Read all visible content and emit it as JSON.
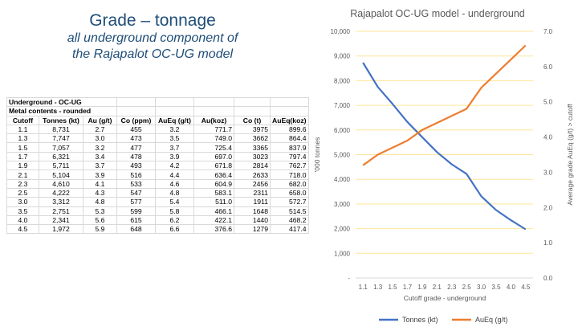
{
  "slide": {
    "title": "Grade – tonnage",
    "subtitle_line1": "all underground component of",
    "subtitle_line2": "the Rajapalot OC-UG model"
  },
  "table": {
    "caption1": "Underground - OC-UG",
    "caption2": "Metal contents - rounded",
    "headers": [
      "Cutoff",
      "Tonnes (kt)",
      "Au (g/t)",
      "Co (ppm)",
      "AuEq (g/t)",
      "Au(koz)",
      "Co (t)",
      "AuEq(koz)"
    ],
    "rows": [
      [
        "1.1",
        "8,731",
        "2.7",
        "455",
        "3.2",
        "771.7",
        "3975",
        "899.6"
      ],
      [
        "1.3",
        "7,747",
        "3.0",
        "473",
        "3.5",
        "749.0",
        "3662",
        "864.4"
      ],
      [
        "1.5",
        "7,057",
        "3.2",
        "477",
        "3.7",
        "725.4",
        "3365",
        "837.9"
      ],
      [
        "1.7",
        "6,321",
        "3.4",
        "478",
        "3.9",
        "697.0",
        "3023",
        "797.4"
      ],
      [
        "1.9",
        "5,711",
        "3.7",
        "493",
        "4.2",
        "671.8",
        "2814",
        "762.7"
      ],
      [
        "2.1",
        "5,104",
        "3.9",
        "516",
        "4.4",
        "636.4",
        "2633",
        "718.0"
      ],
      [
        "2.3",
        "4,610",
        "4.1",
        "533",
        "4.6",
        "604.9",
        "2456",
        "682.0"
      ],
      [
        "2.5",
        "4,222",
        "4.3",
        "547",
        "4.8",
        "583.1",
        "2311",
        "658.0"
      ],
      [
        "3.0",
        "3,312",
        "4.8",
        "577",
        "5.4",
        "511.0",
        "1911",
        "572.7"
      ],
      [
        "3.5",
        "2,751",
        "5.3",
        "599",
        "5.8",
        "466.1",
        "1648",
        "514.5"
      ],
      [
        "4.0",
        "2,341",
        "5.6",
        "615",
        "6.2",
        "422.1",
        "1440",
        "468.2"
      ],
      [
        "4.5",
        "1,972",
        "5.9",
        "648",
        "6.6",
        "376.6",
        "1279",
        "417.4"
      ]
    ]
  },
  "chart_data": {
    "type": "line",
    "title": "Rajapalot OC-UG model - underground",
    "xlabel": "Cutoff grade - underground",
    "ylabel_left": "'000 tonnes",
    "ylabel_right": "Average grade AuEq (g/t) > cutoff",
    "categories": [
      "1.1",
      "1.3",
      "1.5",
      "1.7",
      "1.9",
      "2.1",
      "2.3",
      "2.5",
      "3.0",
      "3.5",
      "4.0",
      "4.5"
    ],
    "y_left_ticks": [
      "-",
      "1,000",
      "2,000",
      "3,000",
      "4,000",
      "5,000",
      "6,000",
      "7,000",
      "8,000",
      "9,000",
      "10,000"
    ],
    "y_right_ticks": [
      "0.0",
      "1.0",
      "2.0",
      "3.0",
      "4.0",
      "5.0",
      "6.0",
      "7.0"
    ],
    "ylim_left": [
      0,
      10000
    ],
    "ylim_right": [
      0,
      7
    ],
    "series": [
      {
        "name": "Tonnes (kt)",
        "axis": "left",
        "color": "#4472c4",
        "values": [
          8731,
          7747,
          7057,
          6321,
          5711,
          5104,
          4610,
          4222,
          3312,
          2751,
          2341,
          1972
        ]
      },
      {
        "name": "AuEq (g/t)",
        "axis": "right",
        "color": "#ed7d31",
        "values": [
          3.2,
          3.5,
          3.7,
          3.9,
          4.2,
          4.4,
          4.6,
          4.8,
          5.4,
          5.8,
          6.2,
          6.6
        ]
      }
    ],
    "grid_color": "#ffe699",
    "legend_position": "bottom"
  }
}
